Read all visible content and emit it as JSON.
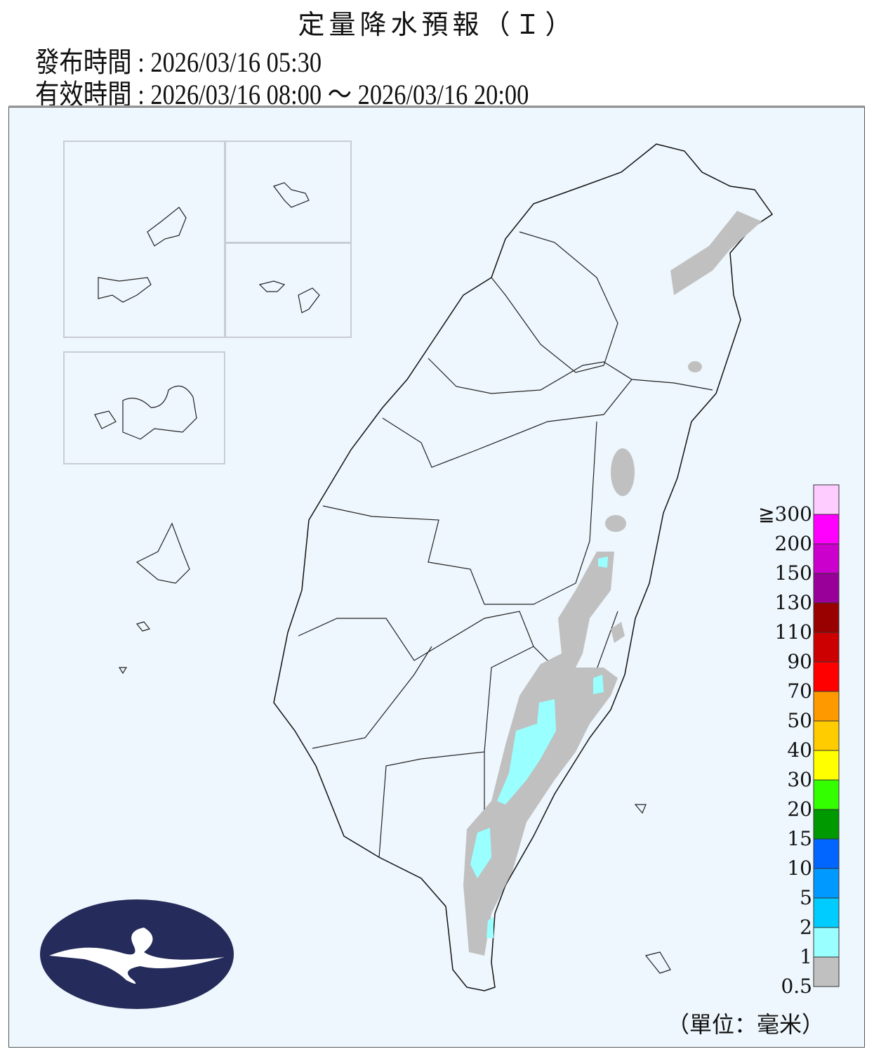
{
  "header": {
    "title": "定量降水預報（Ｉ）",
    "issue_label": "發布時間",
    "issue_time": "2026/03/16 05:30",
    "valid_label": "有效時間",
    "valid_time": "2026/03/16 08:00 ～ 2026/03/16 20:00"
  },
  "legend": {
    "unit": "（單位：毫米）",
    "labels": [
      "≧300",
      "200",
      "150",
      "130",
      "110",
      "90",
      "70",
      "50",
      "40",
      "30",
      "20",
      "15",
      "10",
      "5",
      "2",
      "1",
      "0.5"
    ],
    "colors": [
      "#ffccff",
      "#ff00ff",
      "#cc00cc",
      "#990099",
      "#990000",
      "#cc0000",
      "#ff0000",
      "#ff9900",
      "#ffcc00",
      "#ffff00",
      "#33ff00",
      "#009900",
      "#0066ff",
      "#0099ff",
      "#00ccff",
      "#99ffff",
      "#c0c0c0"
    ]
  },
  "logo": {
    "color": "#252b5a"
  }
}
